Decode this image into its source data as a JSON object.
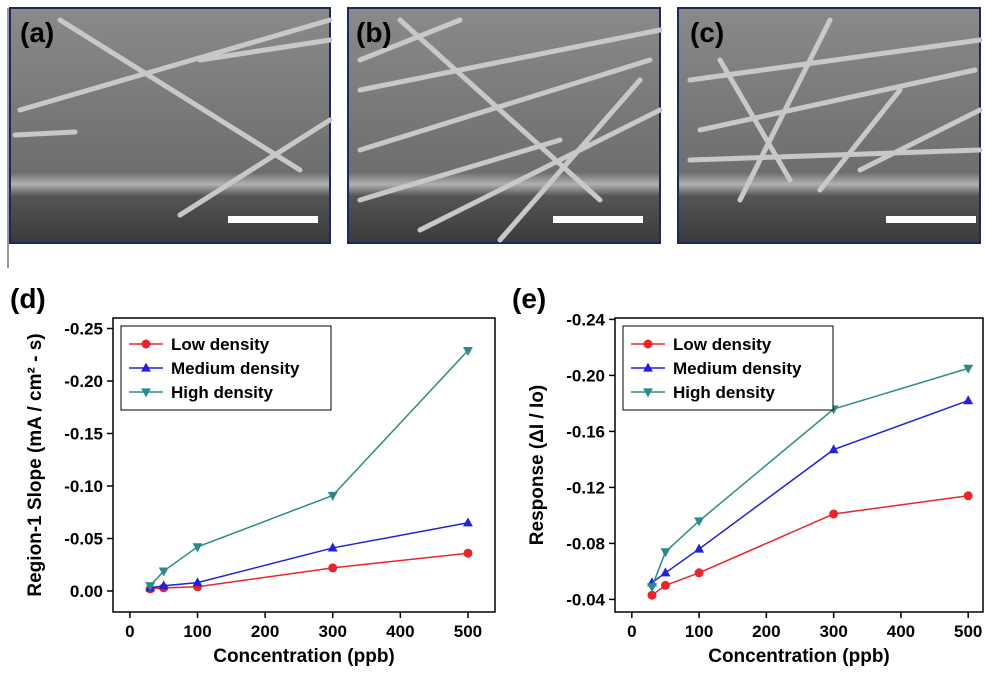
{
  "image_panels": [
    "(a)",
    "(b)",
    "(c)"
  ],
  "chart_data": [
    {
      "type": "line",
      "panel_label": "(d)",
      "x_label": "Concentration (ppb)",
      "y_label": "Region-1 Slope (mA / cm² - s)",
      "x": [
        30,
        50,
        100,
        300,
        500
      ],
      "xlim": [
        -25,
        540
      ],
      "xticks": [
        0,
        100,
        200,
        300,
        400,
        500
      ],
      "ylim": [
        0.02,
        -0.26
      ],
      "yticks": [
        {
          "value": 0,
          "label": "0.00"
        },
        -0.05,
        {
          "value": -0.1,
          "label": "-0.10"
        },
        -0.15,
        {
          "value": -0.2,
          "label": "-0.20"
        },
        -0.25
      ],
      "legend": "upper left",
      "series": [
        {
          "name": "Low density",
          "color": "#e8262a",
          "marker": "circle",
          "values": [
            -0.002,
            -0.003,
            -0.004,
            -0.022,
            -0.036
          ]
        },
        {
          "name": "Medium density",
          "color": "#2222dd",
          "marker": "triangle-up",
          "values": [
            -0.003,
            -0.005,
            -0.008,
            -0.041,
            -0.065
          ]
        },
        {
          "name": "High density",
          "color": "#2a8c8a",
          "marker": "triangle-down",
          "values": [
            -0.005,
            -0.019,
            -0.042,
            -0.091,
            -0.229
          ]
        }
      ]
    },
    {
      "type": "line",
      "panel_label": "(e)",
      "x_label": "Concentration (ppb)",
      "y_label": "Response (ΔI / Io)",
      "x": [
        30,
        50,
        100,
        300,
        500
      ],
      "xlim": [
        -25,
        522
      ],
      "xticks": [
        0,
        100,
        200,
        300,
        400,
        500
      ],
      "ylim": [
        -0.031,
        -0.241
      ],
      "yticks": [
        -0.04,
        -0.08,
        -0.12,
        -0.16,
        {
          "value": -0.2,
          "label": "-0.20"
        },
        -0.24
      ],
      "legend": "upper left",
      "series": [
        {
          "name": "Low density",
          "color": "#e8262a",
          "marker": "circle",
          "values": [
            -0.043,
            -0.05,
            -0.059,
            -0.101,
            -0.114
          ]
        },
        {
          "name": "Medium density",
          "color": "#2222dd",
          "marker": "triangle-up",
          "values": [
            -0.052,
            -0.059,
            -0.076,
            -0.147,
            -0.182
          ]
        },
        {
          "name": "High density",
          "color": "#2a8c8a",
          "marker": "triangle-down",
          "values": [
            -0.049,
            -0.074,
            -0.096,
            -0.176,
            -0.205
          ]
        }
      ]
    }
  ]
}
